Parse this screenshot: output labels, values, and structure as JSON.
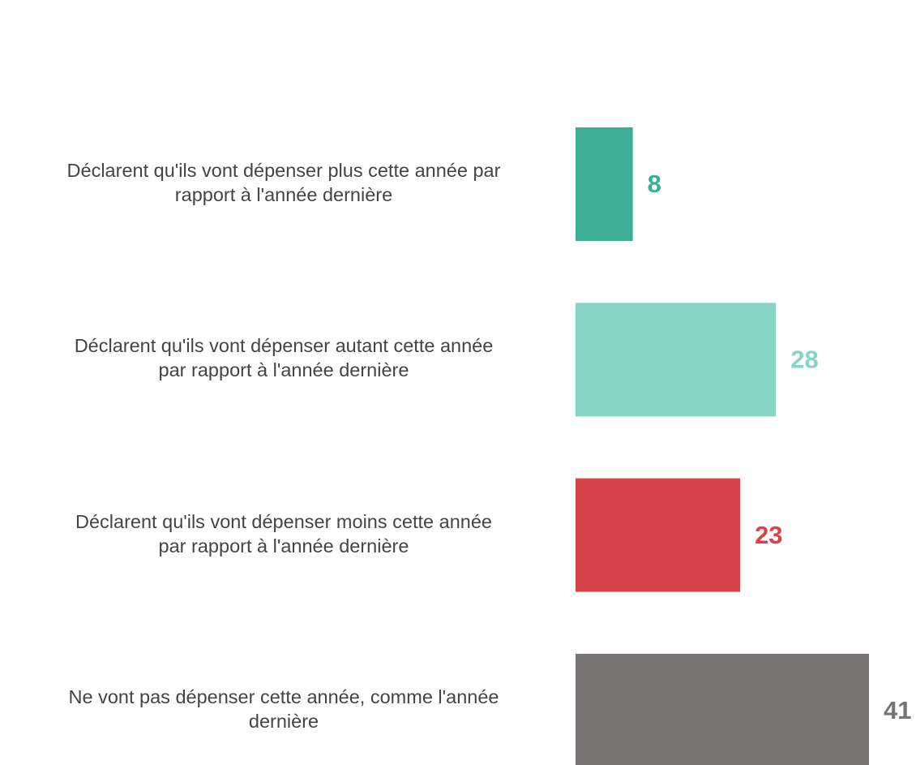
{
  "chart_data": {
    "type": "barh",
    "categories": [
      "Déclarent qu'ils vont dépenser plus cette année par\nrapport à l'année dernière",
      "Déclarent qu'ils vont dépenser autant cette année\npar rapport à l'année dernière",
      "Déclarent qu'ils vont dépenser moins cette année\npar rapport à l'année dernière",
      "Ne vont pas dépenser cette année, comme l'année\ndernière"
    ],
    "values": [
      8,
      28,
      23,
      41
    ],
    "colors": [
      "#3dae96",
      "#86d4c4",
      "#d7434a",
      "#787473"
    ],
    "xlim": [
      0,
      41
    ]
  }
}
